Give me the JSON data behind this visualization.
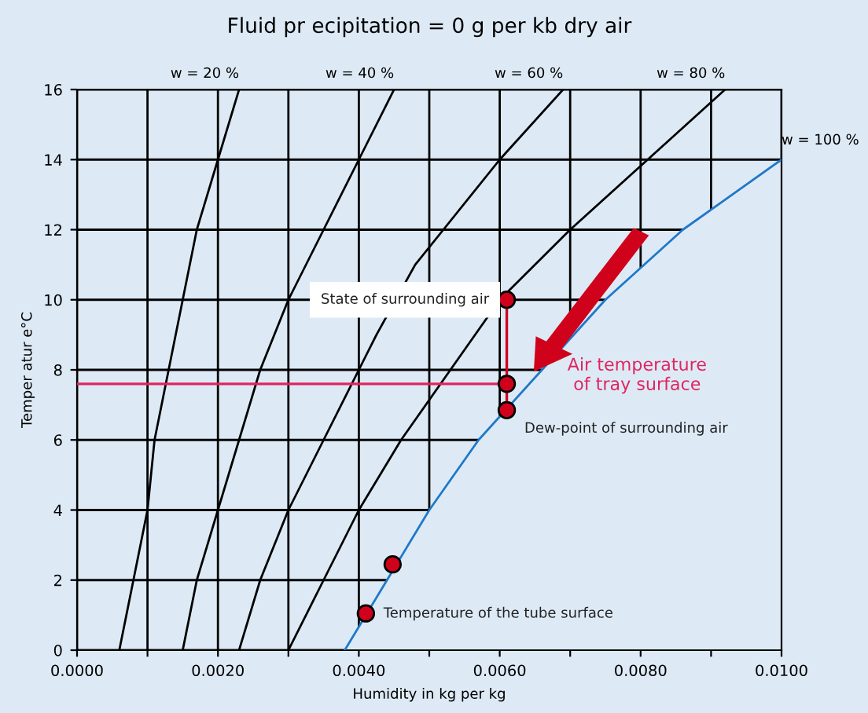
{
  "chart_data": {
    "type": "line",
    "title": "Fluid pr ecipitation = 0 g per kb dry air",
    "xlabel": "Humidity in kg per kg",
    "ylabel": "Temper atur e°C",
    "xlim": [
      0,
      0.01
    ],
    "ylim": [
      0,
      16
    ],
    "xticks": [
      {
        "value": 0,
        "label": "0.0000"
      },
      {
        "value": 0.001,
        "label": null
      },
      {
        "value": 0.002,
        "label": "0.0020"
      },
      {
        "value": 0.003,
        "label": null
      },
      {
        "value": 0.004,
        "label": "0.0040"
      },
      {
        "value": 0.005,
        "label": null
      },
      {
        "value": 0.006,
        "label": "0.0060"
      },
      {
        "value": 0.007,
        "label": null
      },
      {
        "value": 0.008,
        "label": "0.0080"
      },
      {
        "value": 0.009,
        "label": null
      },
      {
        "value": 0.01,
        "label": "0.0100"
      }
    ],
    "yticks": [
      0,
      2,
      4,
      6,
      8,
      10,
      12,
      14,
      16
    ],
    "grid": true,
    "marker": "none",
    "line_style": "solid",
    "series": [
      {
        "name": "w = 20 %",
        "color": "#000000",
        "x": [
          0.0006,
          0.0008,
          0.001,
          0.0011,
          0.0013,
          0.0015,
          0.0017,
          0.002,
          0.0023
        ],
        "values": [
          0,
          2,
          4,
          6,
          8,
          10,
          12,
          14,
          16
        ]
      },
      {
        "name": "w = 40 %",
        "color": "#000000",
        "x": [
          0.0015,
          0.0017,
          0.002,
          0.0023,
          0.0026,
          0.003,
          0.0035,
          0.004,
          0.0045
        ],
        "values": [
          0,
          2,
          4,
          6,
          8,
          10,
          12,
          14,
          16
        ]
      },
      {
        "name": "w = 60 %",
        "color": "#000000",
        "x": [
          0.0023,
          0.0026,
          0.003,
          0.0035,
          0.004,
          0.00425,
          0.0048,
          0.0052,
          0.006,
          0.0069
        ],
        "values": [
          0,
          2,
          4,
          6,
          8,
          9,
          11,
          12,
          14,
          16
        ]
      },
      {
        "name": "w = 80 %",
        "color": "#000000",
        "x": [
          0.003,
          0.0035,
          0.004,
          0.0046,
          0.0053,
          0.006,
          0.007,
          0.0081,
          0.0092
        ],
        "values": [
          0,
          2,
          4,
          6,
          8,
          10,
          12,
          14,
          16
        ]
      },
      {
        "name": "w = 100 %",
        "color": "#1f78c8",
        "x": [
          0.0038,
          0.0044,
          0.005,
          0.0057,
          0.0066,
          0.0075,
          0.0086,
          0.01
        ],
        "values": [
          0,
          2,
          4,
          6,
          8,
          10,
          12,
          14
        ]
      },
      {
        "color": "#e0245e",
        "x": [
          0,
          0.0061
        ],
        "values": [
          7.6,
          7.6
        ]
      },
      {
        "color": "#d0021b",
        "x": [
          0.0061,
          0.0061
        ],
        "values": [
          10,
          6.85
        ]
      },
      {
        "type": "scatter",
        "color": "#d0021b",
        "marker": "circle",
        "x": [
          0.0061,
          0.0061,
          0.0061,
          0.00448,
          0.0041
        ],
        "values": [
          10,
          7.6,
          6.85,
          2.45,
          1.05
        ]
      }
    ],
    "annotations": [
      "State of surrounding air",
      "Air temperature\nof tray surface",
      "Dew-point of surrounding air",
      "Temperature of the tube surface"
    ]
  }
}
